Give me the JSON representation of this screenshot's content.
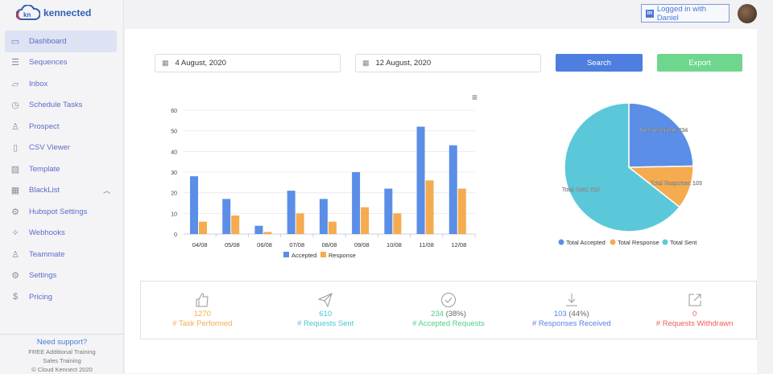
{
  "brand": {
    "logo_mark": "kn",
    "name": "kennected"
  },
  "sidebar": {
    "items": [
      {
        "label": "Dashboard",
        "icon": "monitor-icon"
      },
      {
        "label": "Sequences",
        "icon": "list-icon"
      },
      {
        "label": "Inbox",
        "icon": "chat-icon"
      },
      {
        "label": "Schedule Tasks",
        "icon": "clock-icon"
      },
      {
        "label": "Prospect",
        "icon": "user-icon"
      },
      {
        "label": "CSV Viewer",
        "icon": "file-icon"
      },
      {
        "label": "Template",
        "icon": "image-icon"
      },
      {
        "label": "BlackList",
        "icon": "blacklist-icon"
      },
      {
        "label": "Hubspot Settings",
        "icon": "gear-icon"
      },
      {
        "label": "Webhooks",
        "icon": "wand-icon"
      },
      {
        "label": "Teammate",
        "icon": "user-icon"
      },
      {
        "label": "Settings",
        "icon": "gear-icon"
      },
      {
        "label": "Pricing",
        "icon": "dollar-icon"
      }
    ],
    "support": {
      "title": "Need support?",
      "line1": "FREE Additional Training",
      "line2": "Sales Training",
      "copyright": "© Cloud Kennect 2020"
    }
  },
  "header": {
    "login_label": "Logged in with Daniel"
  },
  "filters": {
    "start_date": "4 August, 2020",
    "end_date": "12 August, 2020",
    "search_label": "Search",
    "export_label": "Export"
  },
  "chart_data": [
    {
      "type": "bar",
      "title": "",
      "categories": [
        "04/08",
        "05/08",
        "06/08",
        "07/08",
        "08/08",
        "09/08",
        "10/08",
        "11/08",
        "12/08"
      ],
      "series": [
        {
          "name": "Accepted",
          "color": "#5b8ee6",
          "values": [
            28,
            17,
            4,
            21,
            17,
            30,
            22,
            52,
            43
          ]
        },
        {
          "name": "Response",
          "color": "#f5ab4f",
          "values": [
            6,
            9,
            1,
            10,
            6,
            13,
            10,
            26,
            22
          ]
        }
      ],
      "yticks": [
        0,
        10,
        20,
        30,
        40,
        50,
        60
      ],
      "ylim": [
        0,
        60
      ],
      "legend": "bottom",
      "grid": true
    },
    {
      "type": "pie",
      "slices": [
        {
          "name": "Total Accepted",
          "value": 234,
          "label": "Total Accepted: 234",
          "color": "#5b8ee6"
        },
        {
          "name": "Total Response",
          "value": 103,
          "label": "Total Response: 103",
          "color": "#f5ab4f"
        },
        {
          "name": "Total Sent",
          "value": 610,
          "label": "Total Sent: 610",
          "color": "#5bc8d9"
        }
      ],
      "legend": "bottom"
    }
  ],
  "stats": [
    {
      "value": "1270",
      "pct": "",
      "label": "# Task Performed",
      "color": "#f5ab4f",
      "icon": "thumbs-up-icon"
    },
    {
      "value": "610",
      "pct": "",
      "label": "# Requests Sent",
      "color": "#47c4d6",
      "icon": "paper-plane-icon"
    },
    {
      "value": "234",
      "pct": "(38%)",
      "label": "# Accepted Requests",
      "color": "#4ccf7e",
      "icon": "check-circle-icon"
    },
    {
      "value": "103",
      "pct": "(44%)",
      "label": "# Responses Received",
      "color": "#5a80e0",
      "icon": "download-icon"
    },
    {
      "value": "0",
      "pct": "",
      "label": "# Requests Withdrawn",
      "color": "#f25a5a",
      "icon": "external-link-icon"
    }
  ]
}
